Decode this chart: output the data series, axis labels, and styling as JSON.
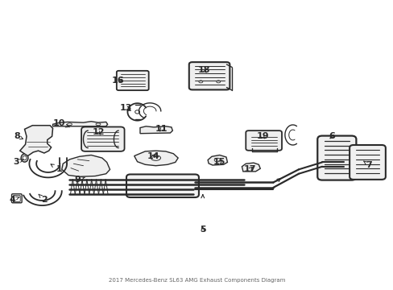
{
  "title": "2017 Mercedes-Benz SL63 AMG",
  "subtitle": "Exhaust Components Diagram",
  "bg": "#ffffff",
  "lc": "#2a2a2a",
  "figsize": [
    4.89,
    3.6
  ],
  "dpi": 100,
  "labels": {
    "1": [
      0.148,
      0.415,
      0.125,
      0.435
    ],
    "2": [
      0.11,
      0.31,
      0.095,
      0.33
    ],
    "3": [
      0.038,
      0.44,
      0.058,
      0.45
    ],
    "4": [
      0.028,
      0.31,
      0.048,
      0.32
    ],
    "5": [
      0.515,
      0.205,
      0.515,
      0.225
    ],
    "6": [
      0.845,
      0.53,
      0.835,
      0.515
    ],
    "7": [
      0.94,
      0.43,
      0.925,
      0.445
    ],
    "8": [
      0.04,
      0.53,
      0.058,
      0.52
    ],
    "9": [
      0.195,
      0.38,
      0.22,
      0.39
    ],
    "10": [
      0.148,
      0.575,
      0.175,
      0.562
    ],
    "11": [
      0.41,
      0.555,
      0.4,
      0.54
    ],
    "12": [
      0.248,
      0.545,
      0.258,
      0.528
    ],
    "13": [
      0.318,
      0.628,
      0.338,
      0.615
    ],
    "14": [
      0.388,
      0.46,
      0.4,
      0.475
    ],
    "15": [
      0.558,
      0.44,
      0.57,
      0.455
    ],
    "16": [
      0.298,
      0.725,
      0.318,
      0.718
    ],
    "17": [
      0.635,
      0.415,
      0.648,
      0.43
    ],
    "18": [
      0.518,
      0.76,
      0.53,
      0.745
    ],
    "19": [
      0.668,
      0.53,
      0.678,
      0.515
    ]
  }
}
